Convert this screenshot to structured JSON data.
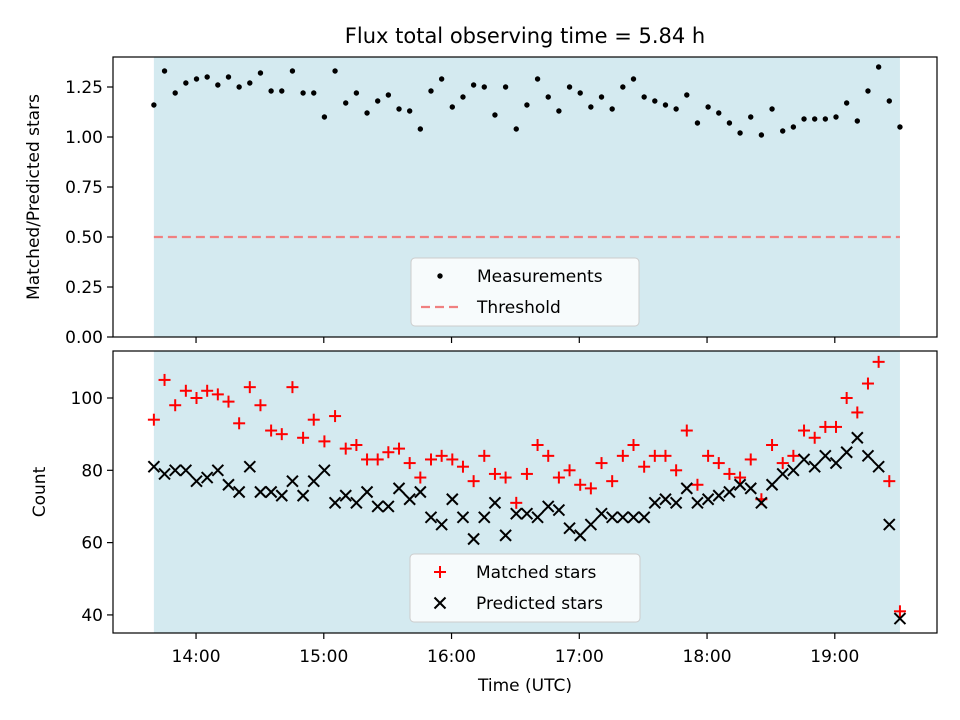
{
  "title": "Flux total observing time = 5.84 h",
  "colors": {
    "band": "#d4eaf0",
    "matched": "#ff0000",
    "predicted": "#000000",
    "threshold": "#f08080",
    "measurement": "#000000"
  },
  "chart_data": [
    {
      "type": "scatter",
      "name": "ratio-panel",
      "ylabel": "Matched/Predicted stars",
      "ylim": [
        0,
        1.4
      ],
      "yticks": [
        "0.00",
        "0.25",
        "0.50",
        "0.75",
        "1.00",
        "1.25"
      ],
      "ytick_values": [
        0,
        0.25,
        0.5,
        0.75,
        1.0,
        1.25
      ],
      "threshold": 0.5,
      "legend": {
        "position": "lower-center",
        "entries": [
          "Measurements",
          "Threshold"
        ]
      },
      "series": [
        {
          "name": "Measurements",
          "values": [
            1.16,
            1.33,
            1.22,
            1.27,
            1.29,
            1.3,
            1.26,
            1.3,
            1.25,
            1.27,
            1.32,
            1.23,
            1.23,
            1.33,
            1.22,
            1.22,
            1.1,
            1.33,
            1.17,
            1.22,
            1.12,
            1.18,
            1.21,
            1.14,
            1.13,
            1.04,
            1.23,
            1.29,
            1.15,
            1.2,
            1.26,
            1.25,
            1.11,
            1.25,
            1.04,
            1.16,
            1.29,
            1.2,
            1.13,
            1.25,
            1.22,
            1.15,
            1.2,
            1.14,
            1.25,
            1.29,
            1.2,
            1.18,
            1.16,
            1.14,
            1.21,
            1.07,
            1.15,
            1.12,
            1.07,
            1.02,
            1.1,
            1.01,
            1.14,
            1.03,
            1.05,
            1.09,
            1.09,
            1.09,
            1.1,
            1.17,
            1.08,
            1.23,
            1.35,
            1.18,
            1.05
          ]
        }
      ]
    },
    {
      "type": "scatter",
      "name": "count-panel",
      "xlabel": "Time (UTC)",
      "ylabel": "Count",
      "xlim": [
        13.35,
        19.8
      ],
      "xticks": [
        "14:00",
        "15:00",
        "16:00",
        "17:00",
        "18:00",
        "19:00"
      ],
      "xtick_values": [
        14,
        15,
        16,
        17,
        18,
        19
      ],
      "band": [
        13.67,
        19.51
      ],
      "ylim": [
        35,
        113
      ],
      "yticks": [
        "40",
        "60",
        "80",
        "100"
      ],
      "ytick_values": [
        40,
        60,
        80,
        100
      ],
      "legend": {
        "position": "lower-center",
        "entries": [
          "Matched stars",
          "Predicted stars"
        ]
      },
      "series": [
        {
          "name": "Matched stars",
          "values": [
            94,
            105,
            98,
            102,
            100,
            102,
            101,
            99,
            93,
            103,
            98,
            91,
            90,
            103,
            89,
            94,
            88,
            95,
            86,
            87,
            83,
            83,
            85,
            86,
            82,
            78,
            83,
            84,
            83,
            81,
            77,
            84,
            79,
            78,
            71,
            79,
            87,
            84,
            78,
            80,
            76,
            75,
            82,
            77,
            84,
            87,
            81,
            84,
            84,
            80,
            91,
            76,
            84,
            82,
            79,
            78,
            83,
            72,
            87,
            82,
            84,
            91,
            89,
            92,
            92,
            100,
            96,
            104,
            110,
            77,
            41
          ]
        },
        {
          "name": "Predicted stars",
          "values": [
            81,
            79,
            80,
            80,
            77,
            78,
            80,
            76,
            74,
            81,
            74,
            74,
            73,
            77,
            73,
            77,
            80,
            71,
            73,
            71,
            74,
            70,
            70,
            75,
            72,
            74,
            67,
            65,
            72,
            67,
            61,
            67,
            71,
            62,
            68,
            68,
            67,
            70,
            69,
            64,
            62,
            65,
            68,
            67,
            67,
            67,
            67,
            71,
            72,
            71,
            75,
            71,
            72,
            73,
            74,
            76,
            75,
            71,
            76,
            79,
            80,
            83,
            81,
            84,
            82,
            85,
            89,
            84,
            81,
            65,
            39
          ]
        }
      ]
    }
  ]
}
